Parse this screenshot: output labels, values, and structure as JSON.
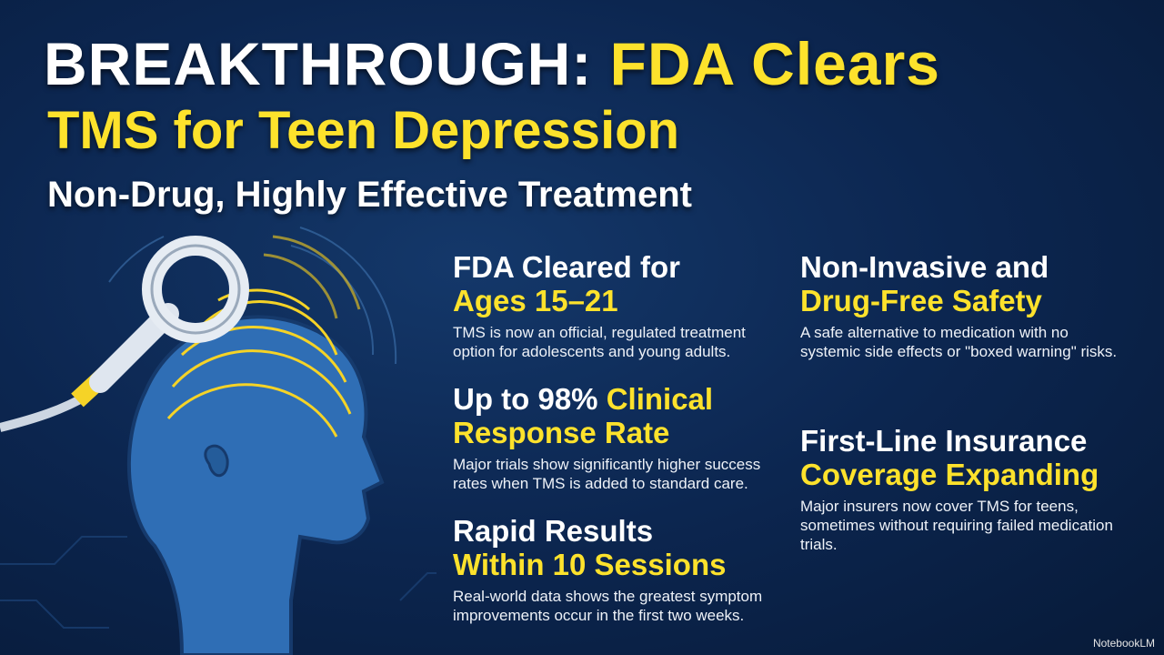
{
  "title": {
    "white": "BREAKTHROUGH:",
    "yellow": "FDA Clears",
    "line2": "TMS for Teen Depression"
  },
  "subtitle": "Non-Drug, Highly Effective Treatment",
  "features": [
    {
      "white": "FDA Cleared for",
      "yellow": "Ages 15–21",
      "body": "TMS is now an official, regulated treatment option for adolescents and young adults."
    },
    {
      "white": "Up to 98%",
      "yellow": "Clinical Response Rate",
      "body": "Major trials show significantly higher success rates when TMS is added to standard care."
    },
    {
      "white": "Rapid Results",
      "yellow": "Within 10 Sessions",
      "body": "Real-world data shows the greatest symptom improvements occur in the first two weeks."
    },
    {
      "white": "Non-Invasive and",
      "yellow": "Drug-Free Safety",
      "body": "A safe alternative to medication with no systemic side effects or \"boxed warning\" risks."
    },
    {
      "white": "First-Line Insurance",
      "yellow": "Coverage Expanding",
      "body": "Major insurers now cover TMS for teens, sometimes without requiring failed medication trials."
    }
  ],
  "footer": "NotebookLM"
}
